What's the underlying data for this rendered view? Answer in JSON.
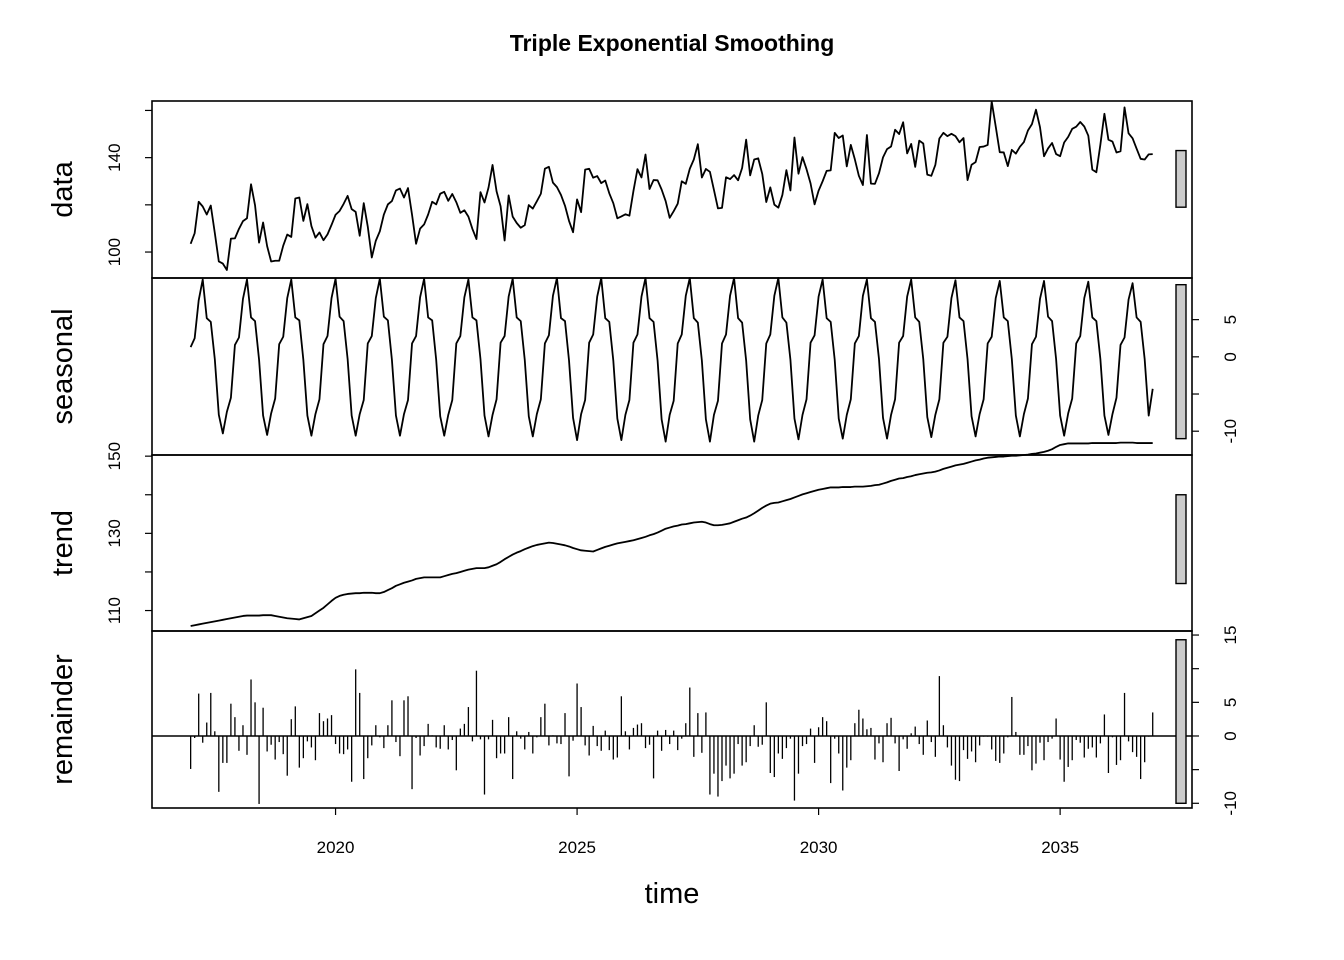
{
  "chart_data": {
    "type": "line",
    "title": "Triple Exponential Smoothing",
    "xlabel": "time",
    "x_ticks": [
      2020,
      2025,
      2030,
      2035
    ],
    "frequency": 12,
    "start": 2017.0,
    "panels": [
      {
        "name": "data",
        "label": "data",
        "kind": "line",
        "ylim": [
          89,
          164
        ],
        "y_ticks": [
          100,
          120,
          140,
          160
        ],
        "y_tick_labels": [
          "100",
          "",
          "140",
          ""
        ],
        "range_bar": [
          119,
          143
        ],
        "values": [
          103.5,
          108,
          121.3,
          119.3,
          115.9,
          119.7,
          108.1,
          96,
          95.1,
          92.4,
          105.7,
          105.8,
          109.8,
          113.1,
          114.3,
          128.7,
          119.8,
          104,
          112.5,
          102.5,
          96,
          96.3,
          96.3,
          102.7,
          107.4,
          106.4,
          122.7,
          123.1,
          113.2,
          120.3,
          111,
          106.1,
          108.3,
          105,
          107.5,
          111.5,
          115.8,
          117.4,
          120.4,
          123.8,
          118.2,
          117,
          106.9,
          120.7,
          110.8,
          97.7,
          104.8,
          108.8,
          115.9,
          120.2,
          121.6,
          126.1,
          126.9,
          123.1,
          127.1,
          115.8,
          103.5,
          109.9,
          111.7,
          115.9,
          121.3,
          120.2,
          124.7,
          125.5,
          121.7,
          124.6,
          121.1,
          116.6,
          117.7,
          115,
          109.8,
          105.5,
          125.4,
          121,
          127.3,
          136.9,
          125.7,
          119.4,
          104.9,
          124,
          115,
          112.3,
          110.3,
          111.4,
          119.9,
          118.4,
          121.5,
          124.7,
          135.3,
          136.1,
          129.4,
          127.5,
          124.2,
          119.6,
          113.2,
          108.4,
          122.3,
          116.9,
          134.9,
          135.3,
          131.5,
          132.2,
          129.2,
          130.3,
          124.9,
          120.7,
          114.3,
          115.1,
          116,
          115.4,
          125.9,
          135.1,
          131.6,
          141.3,
          126.7,
          130.5,
          130.4,
          126.5,
          121.6,
          114.5,
          117.3,
          120.5,
          130,
          128.9,
          135.3,
          139.2,
          145.7,
          131.6,
          135.2,
          134,
          126.3,
          118.5,
          118.7,
          131.7,
          130.9,
          132.6,
          130.4,
          135.6,
          147.6,
          132.5,
          139.2,
          139.7,
          133.1,
          121.2,
          127.4,
          120.1,
          118.8,
          124.2,
          134.7,
          126.1,
          148.5,
          133.2,
          140.2,
          135.1,
          129.1,
          120.2,
          126,
          130,
          134.4,
          134.6,
          150.5,
          148.3,
          149.4,
          136.3,
          145.4,
          139.3,
          132.3,
          128.4,
          149.6,
          129,
          128.9,
          133.4,
          140.1,
          143.6,
          144.7,
          151.8,
          150,
          155,
          141.8,
          145.8,
          136.1,
          147.2,
          146,
          132.8,
          132.3,
          136.9,
          148.1,
          150.5,
          149.1,
          150.1,
          149.1,
          146.5,
          148.3,
          130.5,
          137,
          138.1,
          144.5,
          144.7,
          145.4,
          163.8,
          153.2,
          142.3,
          142.2,
          136.4,
          143.3,
          141.7,
          144.6,
          146.6,
          151.5,
          154.2,
          160.3,
          152.9,
          140.6,
          143.9,
          146.2,
          141.5,
          140.6,
          146.4,
          148.8,
          152.2,
          153.1,
          155.1,
          153.2,
          149.3,
          134.9,
          133.8,
          145.5,
          158.6,
          147.6,
          146.8,
          142.2,
          142.7,
          161.3,
          150.3,
          148.2,
          143.8,
          139.5,
          139.2,
          141.4,
          141.5
        ]
      },
      {
        "name": "seasonal",
        "label": "seasonal",
        "kind": "line",
        "ylim": [
          -13.2,
          10.6
        ],
        "y_ticks": [
          -10,
          -5,
          0,
          5
        ],
        "y_tick_labels": [
          "-10",
          "",
          "0",
          "5"
        ],
        "range_bar": [
          -11,
          9.7
        ],
        "values": [
          1.3,
          2.5,
          7.6,
          10.4,
          5.2,
          4.7,
          -0.3,
          -7.8,
          -10.3,
          -7.4,
          -5.5,
          1.6,
          2.6,
          7.8,
          10.4,
          5.3,
          4.8,
          -0.4,
          -7.9,
          -10.5,
          -7.6,
          -5.6,
          1.7,
          2.7,
          7.9,
          10.4,
          5.3,
          4.9,
          -0.4,
          -7.9,
          -10.6,
          -7.7,
          -5.7,
          1.7,
          2.8,
          7.9,
          10.5,
          5.4,
          4.8,
          -0.3,
          -7.9,
          -10.6,
          -7.7,
          -5.8,
          1.8,
          2.8,
          7.9,
          10.5,
          5.4,
          4.9,
          -0.4,
          -7.9,
          -10.6,
          -7.7,
          -5.8,
          1.8,
          2.8,
          8,
          10.5,
          5.3,
          4.9,
          -0.4,
          -8,
          -10.6,
          -7.8,
          -5.8,
          1.8,
          2.8,
          8,
          10.4,
          5.3,
          4.9,
          -0.3,
          -7.9,
          -10.7,
          -7.8,
          -5.7,
          1.9,
          2.8,
          8.1,
          10.5,
          5.3,
          4.8,
          -0.4,
          -8,
          -10.7,
          -7.7,
          -5.7,
          1.8,
          2.9,
          8.2,
          10.6,
          5.2,
          4.8,
          -0.5,
          -8.2,
          -11.2,
          -7.7,
          -5.8,
          1.9,
          3,
          8.1,
          10.6,
          5.2,
          4.7,
          -0.5,
          -8.3,
          -11.2,
          -7.8,
          -5.8,
          1.9,
          3,
          8.1,
          10.6,
          5.2,
          4.7,
          -0.5,
          -8.4,
          -11.4,
          -7.8,
          -5.9,
          1.8,
          3,
          8.2,
          10.6,
          5.2,
          4.6,
          -0.5,
          -8.4,
          -11.4,
          -7.8,
          -5.9,
          1.8,
          3,
          8.2,
          10.6,
          5.2,
          4.6,
          -0.5,
          -8.4,
          -11.4,
          -7.9,
          -5.8,
          1.8,
          3,
          8.2,
          10.6,
          5.3,
          4.6,
          -0.4,
          -8.3,
          -11.1,
          -7.8,
          -5.7,
          1.9,
          2.9,
          8.1,
          10.4,
          5.2,
          4.7,
          -0.4,
          -8.3,
          -11,
          -7.8,
          -5.7,
          1.8,
          2.8,
          8.2,
          10.4,
          5.2,
          4.7,
          -0.3,
          -8.2,
          -11,
          -7.8,
          -5.7,
          1.9,
          2.8,
          8.1,
          10.4,
          5.3,
          4.7,
          -0.3,
          -8.1,
          -10.8,
          -7.8,
          -5.7,
          1.9,
          2.7,
          7.9,
          10.3,
          5.3,
          4.8,
          -0.3,
          -8,
          -10.7,
          -7.7,
          -5.7,
          1.8,
          2.7,
          7.9,
          10.2,
          5.3,
          4.8,
          -0.3,
          -7.9,
          -10.7,
          -7.7,
          -5.6,
          1.7,
          2.7,
          7.8,
          10.2,
          5.4,
          4.8,
          -0.3,
          -7.9,
          -10.6,
          -7.6,
          -5.6,
          1.8,
          2.8,
          7.9,
          10.1,
          5.3,
          4.8,
          -0.3,
          -7.9,
          -10.5,
          -7.7,
          -5.5,
          1.6,
          2.6,
          7.7,
          9.9,
          5.3,
          4.7,
          -0.3,
          -7.9,
          -4.3
        ]
      },
      {
        "name": "trend",
        "label": "trend",
        "kind": "line",
        "ylim": [
          104.7,
          150.3
        ],
        "y_ticks": [
          110,
          120,
          130,
          140,
          150
        ],
        "y_tick_labels": [
          "110",
          "",
          "130",
          "",
          "150"
        ],
        "range_bar": [
          117,
          140
        ],
        "values": [
          106,
          106.2,
          106.4,
          106.6,
          106.8,
          107,
          107.2,
          107.4,
          107.6,
          107.8,
          108,
          108.2,
          108.4,
          108.6,
          108.7,
          108.7,
          108.7,
          108.7,
          108.8,
          108.8,
          108.8,
          108.6,
          108.4,
          108.2,
          108,
          107.9,
          107.8,
          107.7,
          108,
          108.3,
          108.6,
          109.3,
          110,
          110.7,
          111.6,
          112.5,
          113.3,
          113.8,
          114.1,
          114.3,
          114.4,
          114.5,
          114.5,
          114.6,
          114.6,
          114.6,
          114.5,
          114.5,
          114.8,
          115.3,
          115.8,
          116.4,
          116.8,
          117.2,
          117.5,
          117.8,
          118.2,
          118.4,
          118.6,
          118.6,
          118.6,
          118.6,
          118.6,
          118.9,
          119.2,
          119.5,
          119.7,
          120,
          120.3,
          120.6,
          120.8,
          121,
          121,
          121,
          121.2,
          121.6,
          122,
          122.6,
          123.3,
          123.9,
          124.5,
          125,
          125.4,
          125.9,
          126.3,
          126.7,
          127,
          127.2,
          127.4,
          127.6,
          127.5,
          127.3,
          127.1,
          126.9,
          126.6,
          126.2,
          125.9,
          125.6,
          125.5,
          125.4,
          125.3,
          125.7,
          126.1,
          126.5,
          126.8,
          127.1,
          127.4,
          127.6,
          127.8,
          128,
          128.2,
          128.5,
          128.8,
          129.1,
          129.5,
          129.8,
          130.2,
          130.7,
          131.2,
          131.5,
          131.8,
          132,
          132.3,
          132.4,
          132.6,
          132.8,
          132.9,
          133,
          132.8,
          132.4,
          132.1,
          132.1,
          132.2,
          132.4,
          132.6,
          133,
          133.4,
          133.8,
          134.1,
          134.6,
          135.2,
          135.9,
          136.6,
          137.2,
          137.7,
          137.9,
          138,
          138.3,
          138.6,
          138.9,
          139.3,
          139.7,
          140.1,
          140.4,
          140.7,
          141,
          141.3,
          141.5,
          141.7,
          141.9,
          141.9,
          141.9,
          142,
          142,
          142,
          142.1,
          142.1,
          142.1,
          142.2,
          142.3,
          142.5,
          142.6,
          142.9,
          143.2,
          143.6,
          143.9,
          144.2,
          144.3,
          144.6,
          144.8,
          145.1,
          145.3,
          145.5,
          145.7,
          145.8,
          146,
          146.3,
          146.7,
          147,
          147.3,
          147.6,
          147.8,
          148,
          148.3,
          148.6,
          148.9,
          149.1,
          149.4,
          149.6,
          149.7,
          149.8,
          149.9,
          149.9,
          150,
          150.1,
          150.1,
          150.2,
          150.3,
          150.4,
          150.6,
          150.7,
          150.9,
          151.1,
          151.4,
          151.8,
          152.4,
          152.9,
          153.1,
          153.3,
          153.3,
          153.3,
          153.3,
          153.3,
          153.3,
          153.4,
          153.4,
          153.4,
          153.4,
          153.4,
          153.4,
          153.4,
          153.5,
          153.5,
          153.5,
          153.5,
          153.4,
          153.4,
          153.4,
          153.4,
          153.4
        ]
      },
      {
        "name": "remainder",
        "label": "remainder",
        "kind": "spike",
        "ylim": [
          -10.7,
          15.6
        ],
        "y_ticks": [
          -10,
          -5,
          0,
          5,
          10,
          15
        ],
        "y_tick_labels": [
          "-10",
          "",
          "0",
          "5",
          "",
          "15"
        ],
        "range_bar": [
          -10,
          14.3
        ],
        "values": [
          -4.9,
          -0.3,
          6.3,
          -1,
          2,
          6.4,
          0.7,
          -8.3,
          -4,
          -4,
          4.8,
          2.8,
          -2.2,
          1.6,
          -2.8,
          8.4,
          5,
          -10.1,
          4.2,
          -2.3,
          -1.3,
          -3.5,
          -0.9,
          -2.7,
          -5.9,
          2.5,
          4.4,
          -4.7,
          -3.3,
          -0.8,
          -1.7,
          -3.6,
          3.4,
          2.2,
          2.6,
          3.1,
          -1.2,
          -2.6,
          -2.7,
          -2,
          -6.8,
          9.9,
          6.4,
          -6.4,
          -3.3,
          -1.4,
          1.6,
          -0.2,
          -1.8,
          1.6,
          5.3,
          -0.9,
          -3,
          5.3,
          5.9,
          -7.9,
          -0.3,
          -2.9,
          -1.5,
          1.8,
          0.1,
          -1.7,
          -1.9,
          1.6,
          -2,
          -0.6,
          -5.1,
          1.1,
          1.8,
          4.3,
          -0.8,
          9.7,
          -0.5,
          -8.7,
          -0.5,
          2.4,
          -3.3,
          -2.6,
          -2.6,
          2.8,
          -6.4,
          0.7,
          -0.4,
          -2,
          0.6,
          -2.6,
          -0.2,
          2.8,
          4.8,
          -1.4,
          0.1,
          -1.1,
          -1.2,
          3.4,
          -6,
          -0.7,
          7.8,
          4.3,
          -1.4,
          -2.9,
          1.5,
          -1.5,
          -2.2,
          0.8,
          -2.1,
          -3.5,
          -3.2,
          5.9,
          0.7,
          -2,
          1.2,
          1.7,
          1.9,
          -1.8,
          -1.3,
          -6.3,
          0.8,
          -2.2,
          0.9,
          -1.2,
          0.8,
          -2.1,
          -0.4,
          1.9,
          7.2,
          -3.1,
          3.4,
          -2.5,
          3.5,
          -8.7,
          -5.6,
          -9,
          -6.7,
          -4.4,
          -6.3,
          -5.6,
          -1.2,
          -4.4,
          -3.9,
          -1.5,
          1.6,
          -1.6,
          -1.3,
          5,
          -5.5,
          -6.1,
          -2.6,
          -3.4,
          -1.8,
          -0.4,
          -9.6,
          -5.6,
          -1.5,
          -1.2,
          1.1,
          -4,
          1.3,
          2.8,
          2.2,
          -7,
          -0.4,
          -2.6,
          -8.1,
          -4.7,
          -3.6,
          1.9,
          3.9,
          2.6,
          1,
          1.2,
          -3.5,
          -1.1,
          -3.9,
          1.9,
          2.7,
          -1.1,
          -5.2,
          -0.5,
          -1.9,
          0.4,
          1.4,
          -1.2,
          -2.8,
          2.3,
          -0.9,
          -3.1,
          8.9,
          1.6,
          -1.7,
          -4.4,
          -6.5,
          -6.7,
          -2.1,
          -3.4,
          -2.3,
          -3.9,
          -1.4,
          -0.1,
          -0.1,
          -2,
          -3.7,
          -4,
          -2.6,
          -0.2,
          5.8,
          0.6,
          -2.8,
          -2.8,
          -1.5,
          -5.1,
          -4.1,
          -1,
          -3.6,
          -0.9,
          -0.4,
          2.6,
          -3.5,
          -6.8,
          -4.6,
          -3.6,
          -0.6,
          -1,
          -3.2,
          -1.9,
          -1.7,
          -3.2,
          -1.1,
          3.2,
          -5.5,
          -0.2,
          -4.3,
          -3.6,
          6.4,
          -0.8,
          -2.4,
          -3.1,
          -6.4,
          -3.9,
          -0.1,
          3.5
        ]
      }
    ],
    "grid": false,
    "legend": "none"
  }
}
